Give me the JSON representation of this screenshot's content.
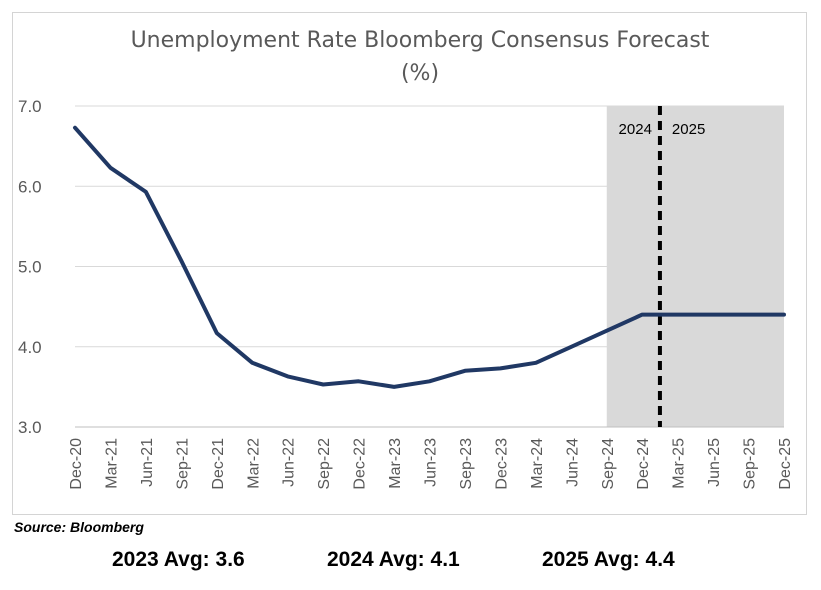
{
  "chart_data": {
    "type": "line",
    "title": "Unemployment Rate Bloomberg Consensus Forecast",
    "subtitle": "(%)",
    "categories": [
      "Dec-20",
      "Mar-21",
      "Jun-21",
      "Sep-21",
      "Dec-21",
      "Mar-22",
      "Jun-22",
      "Sep-22",
      "Dec-22",
      "Mar-23",
      "Jun-23",
      "Sep-23",
      "Dec-23",
      "Mar-24",
      "Jun-24",
      "Sep-24",
      "Dec-24",
      "Mar-25",
      "Jun-25",
      "Sep-25",
      "Dec-25"
    ],
    "series": [
      {
        "values": [
          6.73,
          6.23,
          5.93,
          5.07,
          4.17,
          3.8,
          3.63,
          3.53,
          3.57,
          3.5,
          3.57,
          3.7,
          3.73,
          3.8,
          4.0,
          4.2,
          4.4,
          4.4,
          4.4,
          4.4,
          4.4
        ]
      }
    ],
    "ylim": [
      3.0,
      7.0
    ],
    "yticks": [
      "3.0",
      "4.0",
      "5.0",
      "6.0",
      "7.0"
    ],
    "grid": true,
    "line_color": "#203864",
    "forecast_region": {
      "from_category": "Sep-24",
      "to_category": "Dec-25",
      "shade_color": "#d9d9d9"
    },
    "year_divider": {
      "position_between": [
        "Dec-24",
        "Mar-25"
      ],
      "left_label": "2024",
      "right_label": "2025"
    }
  },
  "source": "Source: Bloomberg",
  "averages": [
    {
      "label": "2023 Avg:",
      "value": "3.6"
    },
    {
      "label": "2024 Avg:",
      "value": "4.1"
    },
    {
      "label": "2025 Avg:",
      "value": "4.4"
    }
  ]
}
